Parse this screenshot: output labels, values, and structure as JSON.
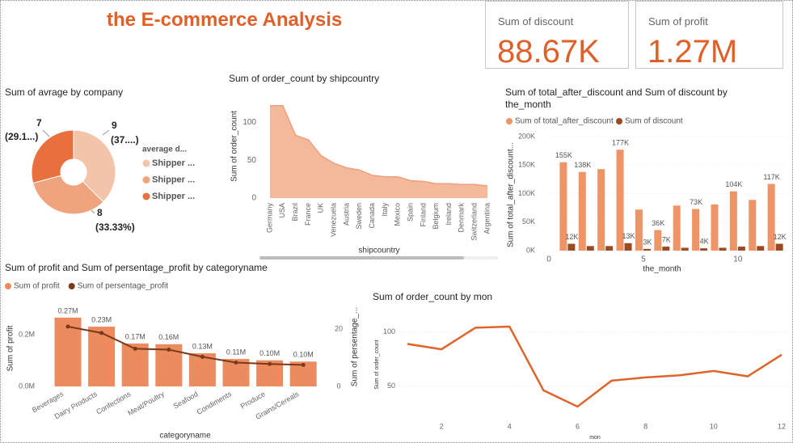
{
  "header": {
    "title": "the E-commerce Analysis"
  },
  "cards": [
    {
      "label": "Sum of discount",
      "value": "88.67K"
    },
    {
      "label": "Sum of profit",
      "value": "1.27M"
    }
  ],
  "chart_data": [
    {
      "type": "pie",
      "title": "Sum of avrage by company",
      "legend_title": "average d...",
      "categories": [
        "Shipper ...",
        "Shipper ...",
        "Shipper ..."
      ],
      "values": [
        9,
        8,
        7
      ],
      "percent_labels": [
        "(37....)",
        "(33.33%)",
        "(29.1...)"
      ],
      "colors": [
        "#f4c4aa",
        "#f0a47e",
        "#e8703f"
      ]
    },
    {
      "type": "area",
      "title": "Sum of order_count by shipcountry",
      "x_label": "shipcountry",
      "y_label": "Sum of order_count",
      "categories": [
        "Germany",
        "USA",
        "Brazil",
        "France",
        "UK",
        "Venezuela",
        "Austria",
        "Sweden",
        "Canada",
        "Italy",
        "Mexico",
        "Spain",
        "Finland",
        "Belgium",
        "Ireland",
        "Denmark",
        "Switzerland",
        "Argentina"
      ],
      "values": [
        122,
        122,
        83,
        77,
        56,
        46,
        40,
        37,
        30,
        28,
        28,
        23,
        22,
        19,
        19,
        18,
        18,
        16
      ],
      "color": "#f4b99a",
      "line_color": "#eea07c",
      "ylim": [
        0,
        125
      ],
      "yticks": [
        0,
        50,
        100
      ]
    },
    {
      "type": "bar",
      "title": "Sum of total_after_discount and Sum of discount by the_month",
      "x_label": "the_month",
      "y_label": "Sum of total_after_discount...",
      "x": [
        1,
        2,
        3,
        4,
        5,
        6,
        7,
        8,
        9,
        10,
        11,
        12
      ],
      "xlim": [
        0,
        12.7
      ],
      "xticks": [
        0,
        5,
        10
      ],
      "ylim": [
        0,
        200000
      ],
      "yticks": [
        {
          "value": 0,
          "label": "0K"
        },
        {
          "value": 50000,
          "label": "50K"
        },
        {
          "value": 100000,
          "label": "100K"
        },
        {
          "value": 150000,
          "label": "150K"
        },
        {
          "value": 200000,
          "label": "200K"
        }
      ],
      "grid": true,
      "series": [
        {
          "name": "Sum of total_after_discount",
          "color": "#ee9466",
          "values": [
            155000,
            138000,
            143000,
            177000,
            72000,
            36000,
            79000,
            73000,
            81000,
            104000,
            89000,
            117000
          ],
          "value_labels": [
            "155K",
            "138K",
            null,
            "177K",
            null,
            "36K",
            null,
            "73K",
            null,
            "104K",
            null,
            "117K"
          ]
        },
        {
          "name": "Sum of discount",
          "color": "#9c4a22",
          "values": [
            12000,
            8000,
            8000,
            13000,
            3000,
            7000,
            5000,
            4000,
            5000,
            7000,
            8000,
            12000
          ],
          "value_labels": [
            "12K",
            null,
            null,
            "13K",
            "3K",
            "7K",
            null,
            "4K",
            null,
            null,
            null,
            "12K"
          ]
        }
      ]
    },
    {
      "type": "combo",
      "title": "Sum of profit and Sum of persentage_profit by categoryname",
      "x_label": "categoryname",
      "y_label": "Sum of profit",
      "y2_label": "Sum of persentage_...",
      "categories": [
        "Beverages",
        "Dairy Products",
        "Confections",
        "Meat/Poultry",
        "Seafood",
        "Condiments",
        "Produce",
        "Grains/Cereals"
      ],
      "ylim": [
        0,
        300000
      ],
      "yticks": [
        {
          "value": 0,
          "label": "0.0M"
        },
        {
          "value": 200000,
          "label": "0.2M"
        }
      ],
      "y2lim": [
        0,
        27
      ],
      "y2ticks": [
        0,
        20
      ],
      "series": [
        {
          "name": "Sum of profit",
          "color": "#ec8b5e",
          "values": [
            266000,
            231000,
            166000,
            163000,
            128000,
            106000,
            101000,
            96000
          ],
          "value_labels": [
            "0.27M",
            "0.23M",
            "0.17M",
            "0.16M",
            "0.13M",
            "0.11M",
            "0.10M",
            "0.10M"
          ]
        },
        {
          "name": "Sum of persentage_profit",
          "color": "#7a3a1c",
          "axis": "y2",
          "values": [
            20.8,
            18.6,
            13.1,
            12.8,
            10.3,
            8.3,
            7.8,
            7.5
          ]
        }
      ]
    },
    {
      "type": "line",
      "title": "Sum of order_count by mon",
      "x_label": "mon",
      "y_label": "Sum of order_count",
      "x": [
        1,
        2,
        3,
        4,
        5,
        6,
        7,
        8,
        9,
        10,
        11,
        12
      ],
      "values": [
        89,
        84,
        104,
        105,
        46,
        31,
        55,
        58,
        60,
        64,
        59,
        79
      ],
      "xlim": [
        1,
        12
      ],
      "xticks": [
        2,
        4,
        6,
        8,
        10,
        12
      ],
      "ylim": [
        25,
        111
      ],
      "yticks": [
        50,
        100
      ],
      "grid": true,
      "color": "#e0632a"
    }
  ]
}
